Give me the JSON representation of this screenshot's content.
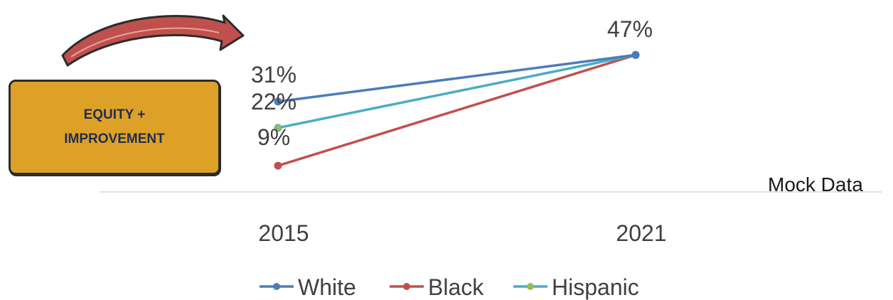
{
  "callout": {
    "text": "EQUITY + IMPROVEMENT"
  },
  "mock_label": "Mock Data",
  "chart_data": {
    "type": "line",
    "categories": [
      "2015",
      "2021"
    ],
    "series": [
      {
        "name": "White",
        "values": [
          31,
          47
        ],
        "color": "#4a7ebb"
      },
      {
        "name": "Black",
        "values": [
          9,
          47
        ],
        "color": "#c0504d"
      },
      {
        "name": "Hispanic",
        "values": [
          22,
          47
        ],
        "color": "#4bacc6"
      }
    ],
    "data_labels": [
      "31%",
      "22%",
      "9%",
      "47%"
    ],
    "legend": {
      "position": "bottom",
      "entries": [
        "White",
        "Black",
        "Hispanic"
      ]
    },
    "marker_colors": {
      "White": "#4a7ebb",
      "Black": "#c0504d",
      "Hispanic": "#9bbb59"
    },
    "grid": false,
    "title": "",
    "xlabel": "",
    "ylabel": "",
    "icons": [
      "curved-arrow-icon"
    ]
  }
}
